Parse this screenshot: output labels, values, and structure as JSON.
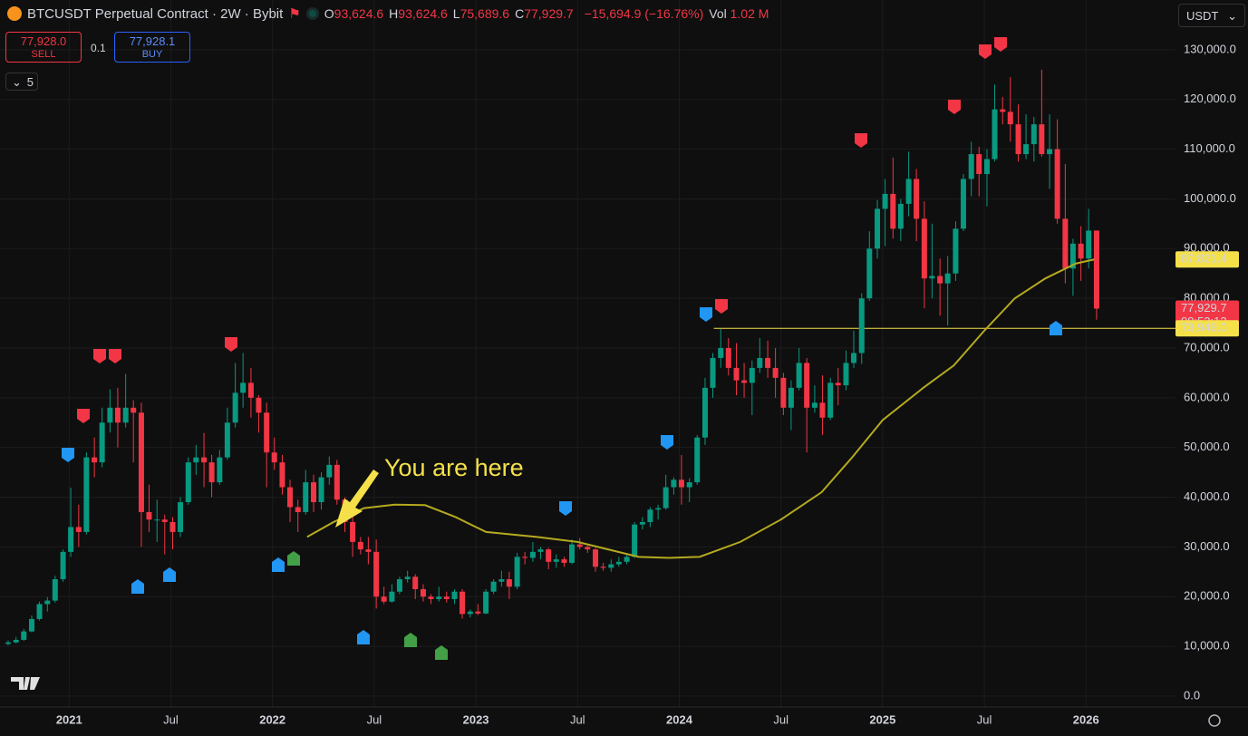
{
  "toolbar": {
    "symbol": "BTCUSDT Perpetual Contract · 2W · Bybit",
    "ohlc": [
      {
        "key": "O",
        "value": "93,624.6"
      },
      {
        "key": "H",
        "value": "93,624.6"
      },
      {
        "key": "L",
        "value": "75,689.6"
      },
      {
        "key": "C",
        "value": "77,929.7"
      }
    ],
    "change": "−15,694.9 (−16.76%)",
    "vol_key": "Vol",
    "vol": "1.02 M",
    "sell_price": "77,928.0",
    "sell": "SELL",
    "qty": "0.1",
    "buy_price": "77,928.1",
    "buy": "BUY",
    "indicators": "5",
    "currency": "USDT"
  },
  "chart_data": {
    "type": "candlestick",
    "annotation": "You are here",
    "up_color": "#089981",
    "down_color": "#f23645",
    "grid": true,
    "xlim": [
      2020.66,
      2026.44
    ],
    "ylim": [
      -2200,
      140000
    ],
    "xticks": [
      2021,
      {
        "value": 2021.5,
        "label": "Jul"
      },
      2022,
      {
        "value": 2022.5,
        "label": "Jul"
      },
      2023,
      {
        "value": 2023.5,
        "label": "Jul"
      },
      2024,
      {
        "value": 2024.5,
        "label": "Jul"
      },
      2025,
      {
        "value": 2025.5,
        "label": "Jul"
      },
      2026
    ],
    "yticks": [
      {
        "value": 0,
        "label": "0.0"
      },
      {
        "value": 10000,
        "label": "10,000.0"
      },
      {
        "value": 20000,
        "label": "20,000.0"
      },
      {
        "value": 30000,
        "label": "30,000.0"
      },
      {
        "value": 40000,
        "label": "40,000.0"
      },
      {
        "value": 50000,
        "label": "50,000.0"
      },
      {
        "value": 60000,
        "label": "60,000.0"
      },
      {
        "value": 70000,
        "label": "70,000.0"
      },
      {
        "value": 80000,
        "label": "80,000.0"
      },
      {
        "value": 90000,
        "label": "90,000.0"
      },
      {
        "value": 100000,
        "label": "100,000.0"
      },
      {
        "value": 110000,
        "label": "110,000.0"
      },
      {
        "value": 120000,
        "label": "120,000.0"
      },
      {
        "value": 130000,
        "label": "130,000.0"
      }
    ],
    "candles": [
      [
        2020.7,
        10500,
        11200,
        10200,
        10800
      ],
      [
        2020.739,
        10800,
        11900,
        10600,
        11300
      ],
      [
        2020.777,
        11300,
        13500,
        11100,
        13000
      ],
      [
        2020.816,
        13000,
        16200,
        12800,
        15500
      ],
      [
        2020.854,
        15500,
        19000,
        15200,
        18500
      ],
      [
        2020.893,
        18500,
        19900,
        17000,
        19200
      ],
      [
        2020.931,
        19200,
        24200,
        18800,
        23500
      ],
      [
        2020.97,
        23500,
        29500,
        23000,
        29000
      ],
      [
        2021.008,
        29000,
        41900,
        28000,
        34000
      ],
      [
        2021.047,
        34000,
        38500,
        30000,
        33000
      ],
      [
        2021.085,
        33000,
        49000,
        32500,
        48000
      ],
      [
        2021.124,
        48000,
        52000,
        44000,
        47000
      ],
      [
        2021.162,
        47000,
        58000,
        46000,
        55000
      ],
      [
        2021.201,
        55000,
        61700,
        53000,
        58000
      ],
      [
        2021.239,
        58000,
        62000,
        50000,
        55000
      ],
      [
        2021.278,
        55000,
        64800,
        54000,
        58000
      ],
      [
        2021.316,
        58000,
        59500,
        47000,
        57000
      ],
      [
        2021.355,
        57000,
        59000,
        30000,
        37000
      ],
      [
        2021.393,
        37000,
        42500,
        33000,
        35500
      ],
      [
        2021.432,
        35500,
        39500,
        31000,
        35500
      ],
      [
        2021.47,
        35500,
        36500,
        28500,
        35000
      ],
      [
        2021.509,
        35000,
        36000,
        29500,
        33000
      ],
      [
        2021.547,
        33000,
        40000,
        32000,
        39000
      ],
      [
        2021.586,
        39000,
        48000,
        38500,
        47000
      ],
      [
        2021.624,
        47000,
        50500,
        44500,
        48000
      ],
      [
        2021.663,
        48000,
        52900,
        42000,
        47000
      ],
      [
        2021.701,
        47000,
        48500,
        40000,
        43000
      ],
      [
        2021.74,
        43000,
        49500,
        42500,
        48000
      ],
      [
        2021.778,
        48000,
        58000,
        47500,
        55000
      ],
      [
        2021.817,
        55000,
        67000,
        54000,
        61000
      ],
      [
        2021.855,
        61000,
        69000,
        58000,
        63000
      ],
      [
        2021.894,
        63000,
        66000,
        56000,
        60000
      ],
      [
        2021.932,
        60000,
        60500,
        53000,
        57000
      ],
      [
        2021.971,
        57000,
        59000,
        42000,
        49000
      ],
      [
        2022.009,
        49000,
        52000,
        45500,
        47000
      ],
      [
        2022.048,
        47000,
        48500,
        40500,
        42000
      ],
      [
        2022.086,
        42000,
        43500,
        35000,
        38000
      ],
      [
        2022.125,
        38000,
        39500,
        33000,
        37000
      ],
      [
        2022.163,
        37000,
        45500,
        36500,
        43000
      ],
      [
        2022.202,
        43000,
        44500,
        37000,
        39000
      ],
      [
        2022.24,
        39000,
        45000,
        37500,
        44000
      ],
      [
        2022.279,
        44000,
        48200,
        42500,
        46500
      ],
      [
        2022.317,
        46500,
        47500,
        38500,
        39500
      ],
      [
        2022.356,
        39500,
        40000,
        33000,
        35000
      ],
      [
        2022.394,
        35000,
        36500,
        28000,
        31000
      ],
      [
        2022.433,
        31000,
        32000,
        28500,
        29500
      ],
      [
        2022.471,
        29500,
        32000,
        26500,
        29000
      ],
      [
        2022.51,
        29000,
        31500,
        17600,
        20000
      ],
      [
        2022.548,
        20000,
        22000,
        18500,
        19000
      ],
      [
        2022.587,
        19000,
        22500,
        18800,
        21000
      ],
      [
        2022.625,
        21000,
        24000,
        20500,
        23500
      ],
      [
        2022.664,
        23500,
        25200,
        22800,
        24000
      ],
      [
        2022.702,
        24000,
        24500,
        19500,
        21500
      ],
      [
        2022.741,
        21500,
        22500,
        19000,
        20000
      ],
      [
        2022.779,
        20000,
        20500,
        18500,
        19500
      ],
      [
        2022.818,
        19500,
        22000,
        19000,
        20000
      ],
      [
        2022.856,
        20000,
        21000,
        18800,
        19500
      ],
      [
        2022.895,
        19500,
        21500,
        18500,
        21000
      ],
      [
        2022.933,
        21000,
        21500,
        15600,
        16500
      ],
      [
        2022.972,
        16500,
        17400,
        15800,
        17000
      ],
      [
        2023.01,
        17000,
        18500,
        16300,
        16600
      ],
      [
        2023.049,
        16600,
        21500,
        16500,
        21000
      ],
      [
        2023.087,
        21000,
        23500,
        20500,
        23000
      ],
      [
        2023.126,
        23000,
        25200,
        22000,
        23500
      ],
      [
        2023.164,
        23500,
        25000,
        19500,
        22000
      ],
      [
        2023.203,
        22000,
        28800,
        21500,
        28000
      ],
      [
        2023.241,
        28000,
        29000,
        26500,
        27800
      ],
      [
        2023.28,
        27800,
        31000,
        27000,
        29000
      ],
      [
        2023.318,
        29000,
        30000,
        27500,
        29500
      ],
      [
        2023.357,
        29500,
        29800,
        25500,
        27000
      ],
      [
        2023.395,
        27000,
        28500,
        25800,
        27500
      ],
      [
        2023.434,
        27500,
        28000,
        26000,
        26800
      ],
      [
        2023.472,
        26800,
        31500,
        26500,
        30500
      ],
      [
        2023.511,
        30500,
        31800,
        29500,
        30000
      ],
      [
        2023.549,
        30000,
        30300,
        28800,
        29500
      ],
      [
        2023.588,
        29500,
        29800,
        25000,
        26000
      ],
      [
        2023.626,
        26000,
        26800,
        25200,
        25800
      ],
      [
        2023.665,
        25800,
        27500,
        25000,
        26500
      ],
      [
        2023.703,
        26500,
        28000,
        26000,
        27000
      ],
      [
        2023.742,
        27000,
        28500,
        26500,
        28000
      ],
      [
        2023.78,
        28000,
        35000,
        27800,
        34500
      ],
      [
        2023.819,
        34500,
        36000,
        33500,
        35000
      ],
      [
        2023.857,
        35000,
        38000,
        34000,
        37500
      ],
      [
        2023.896,
        37500,
        38500,
        35500,
        37800
      ],
      [
        2023.934,
        37800,
        44500,
        37500,
        42000
      ],
      [
        2023.973,
        42000,
        44000,
        40500,
        43500
      ],
      [
        2024.011,
        43500,
        48500,
        38500,
        42000
      ],
      [
        2024.05,
        42000,
        43800,
        39000,
        43000
      ],
      [
        2024.088,
        43000,
        52500,
        42500,
        52000
      ],
      [
        2024.127,
        52000,
        64000,
        50500,
        62000
      ],
      [
        2024.165,
        62000,
        69000,
        60000,
        68000
      ],
      [
        2024.204,
        68000,
        73800,
        66000,
        70000
      ],
      [
        2024.242,
        70000,
        72000,
        64500,
        66000
      ],
      [
        2024.281,
        66000,
        71000,
        60500,
        63500
      ],
      [
        2024.319,
        63500,
        67000,
        60000,
        63000
      ],
      [
        2024.358,
        63000,
        67500,
        56500,
        66000
      ],
      [
        2024.396,
        66000,
        72000,
        65000,
        68000
      ],
      [
        2024.435,
        68000,
        71500,
        64000,
        66000
      ],
      [
        2024.473,
        66000,
        70000,
        60000,
        64000
      ],
      [
        2024.512,
        64000,
        65000,
        56500,
        58000
      ],
      [
        2024.55,
        58000,
        63500,
        53500,
        62000
      ],
      [
        2024.589,
        62000,
        70000,
        61500,
        67000
      ],
      [
        2024.627,
        67000,
        68000,
        49000,
        58000
      ],
      [
        2024.666,
        58000,
        62500,
        57000,
        59000
      ],
      [
        2024.704,
        59000,
        64500,
        52500,
        56000
      ],
      [
        2024.743,
        56000,
        64000,
        55500,
        63000
      ],
      [
        2024.781,
        63000,
        66000,
        58500,
        62500
      ],
      [
        2024.82,
        62500,
        69500,
        61500,
        67000
      ],
      [
        2024.858,
        67000,
        73500,
        66000,
        69000
      ],
      [
        2024.897,
        69000,
        81000,
        66800,
        80000
      ],
      [
        2024.935,
        80000,
        93500,
        79500,
        90000
      ],
      [
        2024.974,
        90000,
        99800,
        88000,
        98000
      ],
      [
        2025.012,
        98000,
        104000,
        90500,
        101000
      ],
      [
        2025.051,
        101000,
        108300,
        92000,
        94000
      ],
      [
        2025.089,
        94000,
        100000,
        91500,
        99000
      ],
      [
        2025.128,
        99000,
        109500,
        96500,
        104000
      ],
      [
        2025.166,
        104000,
        106000,
        91500,
        96000
      ],
      [
        2025.205,
        96000,
        99500,
        78000,
        84000
      ],
      [
        2025.243,
        84000,
        95000,
        80000,
        84500
      ],
      [
        2025.282,
        84500,
        88000,
        76500,
        83000
      ],
      [
        2025.32,
        83000,
        88500,
        74500,
        85000
      ],
      [
        2025.359,
        85000,
        95500,
        83500,
        94000
      ],
      [
        2025.397,
        94000,
        105000,
        93500,
        104000
      ],
      [
        2025.436,
        104000,
        111500,
        100500,
        109000
      ],
      [
        2025.474,
        109000,
        110500,
        100500,
        105000
      ],
      [
        2025.513,
        105000,
        110000,
        98500,
        108000
      ],
      [
        2025.551,
        108000,
        123000,
        107500,
        118000
      ],
      [
        2025.59,
        118000,
        120500,
        115000,
        117500
      ],
      [
        2025.628,
        117500,
        124500,
        111500,
        115000
      ],
      [
        2025.667,
        115000,
        119000,
        107500,
        109000
      ],
      [
        2025.705,
        109000,
        117000,
        108000,
        111000
      ],
      [
        2025.744,
        111000,
        116500,
        107500,
        115000
      ],
      [
        2025.782,
        115000,
        126000,
        108500,
        109000
      ],
      [
        2025.821,
        109000,
        117000,
        102000,
        110000
      ],
      [
        2025.859,
        110000,
        116000,
        95000,
        96000
      ],
      [
        2025.898,
        96000,
        107000,
        83000,
        86000
      ],
      [
        2025.936,
        86000,
        92000,
        80500,
        91000
      ],
      [
        2025.975,
        91000,
        94500,
        83500,
        88000
      ],
      [
        2026.013,
        88000,
        98000,
        86000,
        93624.6
      ],
      [
        2026.052,
        93624.6,
        93624.6,
        75689.6,
        77929.7
      ]
    ],
    "ma": {
      "color": "#b5aa1f",
      "x": [
        2022.17,
        2022.3,
        2022.45,
        2022.6,
        2022.75,
        2022.9,
        2023.05,
        2023.3,
        2023.5,
        2023.65,
        2023.8,
        2023.95,
        2024.1,
        2024.3,
        2024.5,
        2024.7,
        2024.85,
        2025.0,
        2025.2,
        2025.35,
        2025.5,
        2025.65,
        2025.8,
        2025.95,
        2026.04
      ],
      "values": [
        32000,
        35000,
        37800,
        38500,
        38400,
        36000,
        33000,
        32000,
        31000,
        29500,
        28000,
        27800,
        28000,
        31000,
        35500,
        41000,
        48000,
        55500,
        62000,
        66500,
        73500,
        80000,
        84000,
        87000,
        87821.4
      ],
      "label": "87,821.4"
    },
    "last_price": {
      "value": 77929.7,
      "label": "77,929.7",
      "countdown": "08:53:12"
    },
    "hline": {
      "value": 73949,
      "label": "73,949.0",
      "x_start": 2024.17,
      "color": "#f5e04a"
    }
  }
}
